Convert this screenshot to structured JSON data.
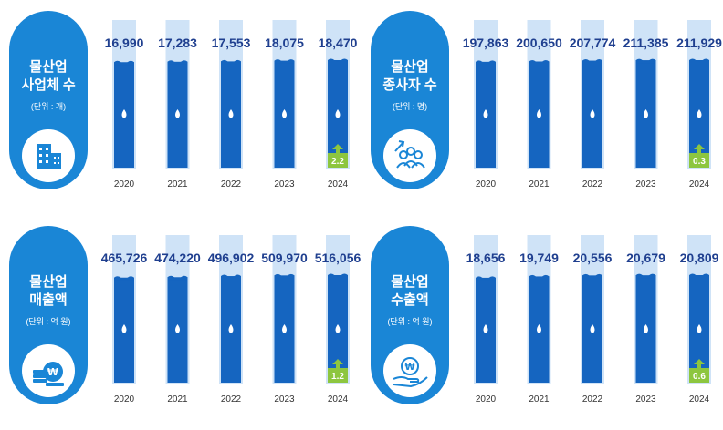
{
  "chart_data": [
    {
      "type": "bar",
      "title_lines": [
        "물산업",
        "사업체 수"
      ],
      "unit": "(단위 : 개)",
      "icon": "building-icon",
      "categories": [
        "2020",
        "2021",
        "2022",
        "2023",
        "2024"
      ],
      "values": [
        16990,
        17283,
        17553,
        18075,
        18470
      ],
      "value_labels": [
        "16,990",
        "17,283",
        "17,553",
        "18,075",
        "18,470"
      ],
      "growth_badge": "2.2"
    },
    {
      "type": "bar",
      "title_lines": [
        "물산업",
        "종사자 수"
      ],
      "unit": "(단위 : 명)",
      "icon": "people-growth-icon",
      "categories": [
        "2020",
        "2021",
        "2022",
        "2023",
        "2024"
      ],
      "values": [
        197863,
        200650,
        207774,
        211385,
        211929
      ],
      "value_labels": [
        "197,863",
        "200,650",
        "207,774",
        "211,385",
        "211,929"
      ],
      "growth_badge": "0.3"
    },
    {
      "type": "bar",
      "title_lines": [
        "물산업",
        "매출액"
      ],
      "unit": "(단위 : 억 원)",
      "icon": "coins-won-icon",
      "categories": [
        "2020",
        "2021",
        "2022",
        "2023",
        "2024"
      ],
      "values": [
        465726,
        474220,
        496902,
        509970,
        516056
      ],
      "value_labels": [
        "465,726",
        "474,220",
        "496,902",
        "509,970",
        "516,056"
      ],
      "growth_badge": "1.2"
    },
    {
      "type": "bar",
      "title_lines": [
        "물산업",
        "수출액"
      ],
      "unit": "(단위 : 억 원)",
      "icon": "hand-won-icon",
      "categories": [
        "2020",
        "2021",
        "2022",
        "2023",
        "2024"
      ],
      "values": [
        18656,
        19749,
        20556,
        20679,
        20809
      ],
      "value_labels": [
        "18,656",
        "19,749",
        "20,556",
        "20,679",
        "20,809"
      ],
      "growth_badge": "0.6"
    }
  ],
  "colors": {
    "pill": "#1a86d6",
    "water": "#1565c0",
    "tube": "#cfe3f7",
    "value_text": "#1f3f8f",
    "badge": "#8dc63f"
  }
}
